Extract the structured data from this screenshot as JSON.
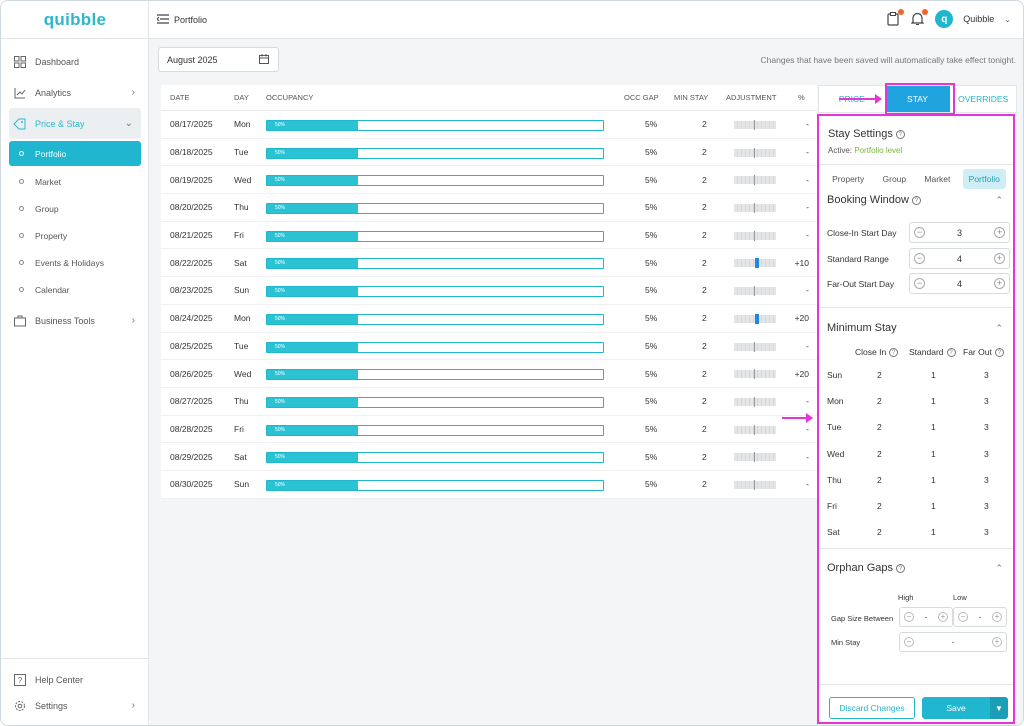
{
  "app": {
    "brand": "quibble",
    "page_title": "Portfolio",
    "user_name": "Quibble",
    "avatar_letter": "q"
  },
  "sidebar": {
    "items": [
      {
        "label": "Dashboard",
        "icon": "grid-icon"
      },
      {
        "label": "Analytics",
        "icon": "chart-icon"
      },
      {
        "label": "Price & Stay",
        "icon": "price-tag-icon"
      }
    ],
    "sub_items": [
      "Portfolio",
      "Market",
      "Group",
      "Property",
      "Events & Holidays",
      "Calendar"
    ],
    "business_tools": "Business Tools",
    "help_center": "Help Center",
    "settings": "Settings"
  },
  "toolbar": {
    "date_value": "August 2025",
    "notice": "Changes that have been saved will automatically take effect tonight."
  },
  "table": {
    "headers": [
      "DATE",
      "DAY",
      "OCCUPANCY",
      "OCC GAP",
      "MIN STAY",
      "ADJUSTMENT",
      "%"
    ],
    "rows": [
      {
        "date": "08/17/2025",
        "day": "Mon",
        "occ": "50%",
        "occ_frac": 0.5,
        "gap": "5%",
        "min_stay": "2",
        "pct": "-",
        "adj": 0
      },
      {
        "date": "08/18/2025",
        "day": "Tue",
        "occ": "50%",
        "occ_frac": 0.5,
        "gap": "5%",
        "min_stay": "2",
        "pct": "-",
        "adj": 0
      },
      {
        "date": "08/19/2025",
        "day": "Wed",
        "occ": "50%",
        "occ_frac": 0.5,
        "gap": "5%",
        "min_stay": "2",
        "pct": "-",
        "adj": 0
      },
      {
        "date": "08/20/2025",
        "day": "Thu",
        "occ": "50%",
        "occ_frac": 0.5,
        "gap": "5%",
        "min_stay": "2",
        "pct": "-",
        "adj": 0
      },
      {
        "date": "08/21/2025",
        "day": "Fri",
        "occ": "50%",
        "occ_frac": 0.5,
        "gap": "5%",
        "min_stay": "2",
        "pct": "-",
        "adj": 0
      },
      {
        "date": "08/22/2025",
        "day": "Sat",
        "occ": "50%",
        "occ_frac": 0.5,
        "gap": "5%",
        "min_stay": "2",
        "pct": "+10",
        "adj": 1
      },
      {
        "date": "08/23/2025",
        "day": "Sun",
        "occ": "50%",
        "occ_frac": 0.5,
        "gap": "5%",
        "min_stay": "2",
        "pct": "-",
        "adj": 0
      },
      {
        "date": "08/24/2025",
        "day": "Mon",
        "occ": "50%",
        "occ_frac": 0.5,
        "gap": "5%",
        "min_stay": "2",
        "pct": "+20",
        "adj": 1
      },
      {
        "date": "08/25/2025",
        "day": "Tue",
        "occ": "50%",
        "occ_frac": 0.5,
        "gap": "5%",
        "min_stay": "2",
        "pct": "-",
        "adj": 0
      },
      {
        "date": "08/26/2025",
        "day": "Wed",
        "occ": "50%",
        "occ_frac": 0.5,
        "gap": "5%",
        "min_stay": "2",
        "pct": "+20",
        "adj": 0
      },
      {
        "date": "08/27/2025",
        "day": "Thu",
        "occ": "50%",
        "occ_frac": 0.5,
        "gap": "5%",
        "min_stay": "2",
        "pct": "-",
        "adj": 0
      },
      {
        "date": "08/28/2025",
        "day": "Fri",
        "occ": "50%",
        "occ_frac": 0.5,
        "gap": "5%",
        "min_stay": "2",
        "pct": "-",
        "adj": 0
      },
      {
        "date": "08/29/2025",
        "day": "Sat",
        "occ": "50%",
        "occ_frac": 0.5,
        "gap": "5%",
        "min_stay": "2",
        "pct": "-",
        "adj": 0
      },
      {
        "date": "08/30/2025",
        "day": "Sun",
        "occ": "50%",
        "occ_frac": 0.5,
        "gap": "5%",
        "min_stay": "2",
        "pct": "-",
        "adj": 0
      }
    ]
  },
  "tabs": [
    "PRICE",
    "STAY",
    "OVERRIDES"
  ],
  "stay_settings": {
    "title": "Stay Settings",
    "active_label": "Active:",
    "active_value": "Portfolio level",
    "subtabs": [
      "Property",
      "Group",
      "Market",
      "Portfolio"
    ],
    "booking_window": {
      "title": "Booking Window",
      "rows": [
        {
          "label": "Close-In Start Day",
          "value": "3"
        },
        {
          "label": "Standard Range",
          "value": "4"
        },
        {
          "label": "Far-Out Start Day",
          "value": "4"
        }
      ]
    },
    "minimum_stay": {
      "title": "Minimum Stay",
      "headers": [
        "Close In",
        "Standard",
        "Far Out"
      ],
      "rows": [
        {
          "day": "Sun",
          "close_in": "2",
          "standard": "1",
          "far_out": "3"
        },
        {
          "day": "Mon",
          "close_in": "2",
          "standard": "1",
          "far_out": "3"
        },
        {
          "day": "Tue",
          "close_in": "2",
          "standard": "1",
          "far_out": "3"
        },
        {
          "day": "Wed",
          "close_in": "2",
          "standard": "1",
          "far_out": "3"
        },
        {
          "day": "Thu",
          "close_in": "2",
          "standard": "1",
          "far_out": "3"
        },
        {
          "day": "Fri",
          "close_in": "2",
          "standard": "1",
          "far_out": "3"
        },
        {
          "day": "Sat",
          "close_in": "2",
          "standard": "1",
          "far_out": "3"
        }
      ]
    },
    "orphan_gaps": {
      "title": "Orphan Gaps",
      "high": "High",
      "low": "Low",
      "gap_size_label": "Gap Size Between",
      "min_stay_label": "Min Stay",
      "gap_high": "-",
      "gap_low": "-",
      "min_stay_value": "-"
    },
    "discard": "Discard Changes",
    "save": "Save"
  }
}
